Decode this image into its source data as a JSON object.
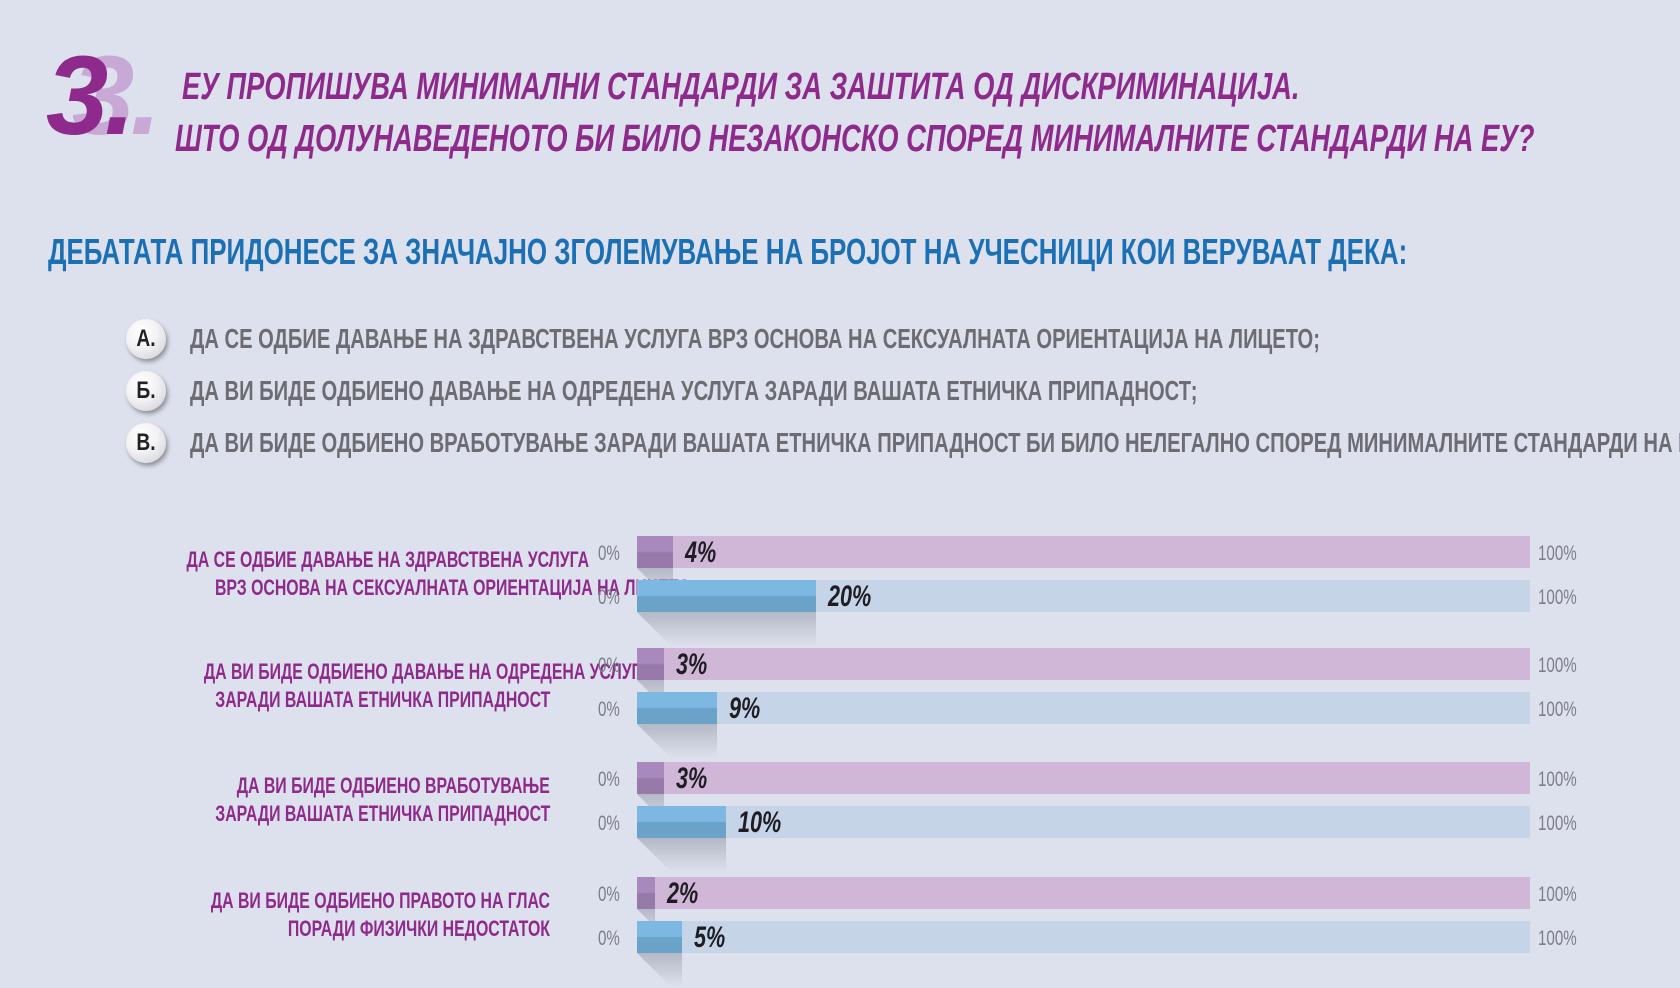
{
  "header": {
    "number": "3.",
    "question_line_1": "ЕУ ПРОПИШУВА МИНИМАЛНИ СТАНДАРДИ ЗА ЗАШТИТА ОД ДИСКРИМИНАЦИЈА.",
    "question_line_2": "ШТО ОД ДОЛУНАВЕДЕНОТО БИ БИЛО НЕЗАКОНСКО СПОРЕД МИНИМАЛНИТЕ СТАНДАРДИ НА ЕУ?"
  },
  "subtitle": "ДЕБАТАТА ПРИДОНЕСЕ ЗА ЗНАЧАЈНО ЗГОЛЕМУВАЊЕ НА БРОЈОТ НА УЧЕСНИЦИ КОИ ВЕРУВААТ ДЕКА:",
  "options": [
    {
      "badge": "A.",
      "text": "ДА СЕ ОДБИЕ ДАВАЊЕ НА ЗДРАВСТВЕНА УСЛУГА ВРЗ ОСНОВА НА СЕКСУАЛНАТА ОРИЕНТАЦИЈА НА ЛИЦЕТО;"
    },
    {
      "badge": "Б.",
      "text": "ДА ВИ БИДЕ ОДБИЕНО ДАВАЊЕ НА ОДРЕДЕНА УСЛУГА ЗАРАДИ ВАШАТА ЕТНИЧКА ПРИПАДНОСТ;"
    },
    {
      "badge": "В.",
      "text": "ДА ВИ БИДЕ ОДБИЕНО ВРАБОТУВАЊЕ ЗАРАДИ ВАШАТА ЕТНИЧКА ПРИПАДНОСТ БИ БИЛО НЕЛЕГАЛНО СПОРЕД МИНИМАЛНИТЕ СТАНДАРДИ НА ЕУ."
    }
  ],
  "colors": {
    "purple_fill": "#a988bd",
    "purple_track": "#d0b7d8",
    "blue_fill": "#7db8e2",
    "blue_track": "#c6d4e8",
    "title": "#8e2a8c",
    "subtitle": "#1b6fb5"
  },
  "chart_data": {
    "type": "bar",
    "orientation": "horizontal",
    "xlim": [
      0,
      100
    ],
    "axis_min_label": "0%",
    "axis_max_label": "100%",
    "categories": [
      [
        "ДА СЕ ОДБИЕ ДАВАЊЕ НА ЗДРАВСТВЕНА УСЛУГА",
        "ВРЗ ОСНОВА НА СЕКСУАЛНАТА ОРИЕНТАЦИЈА НА ЛИЦЕТО"
      ],
      [
        "ДА ВИ БИДЕ ОДБИЕНО ДАВАЊЕ НА ОДРЕДЕНА УСЛУГА",
        "ЗАРАДИ ВАШАТА ЕТНИЧКА ПРИПАДНОСТ"
      ],
      [
        "ДА ВИ БИДЕ ОДБИЕНО ВРАБОТУВАЊЕ",
        "ЗАРАДИ ВАШАТА ЕТНИЧКА ПРИПАДНОСТ"
      ],
      [
        "ДА ВИ БИДЕ ОДБИЕНО ПРАВОТО НА ГЛАС",
        "ПОРАДИ ФИЗИЧКИ НЕДОСТАТОК"
      ]
    ],
    "series": [
      {
        "color": "#a988bd",
        "values": [
          4,
          3,
          3,
          2
        ],
        "labels": [
          "4%",
          "3%",
          "3%",
          "2%"
        ]
      },
      {
        "color": "#7db8e2",
        "values": [
          20,
          9,
          10,
          5
        ],
        "labels": [
          "20%",
          "9%",
          "10%",
          "5%"
        ]
      }
    ]
  }
}
